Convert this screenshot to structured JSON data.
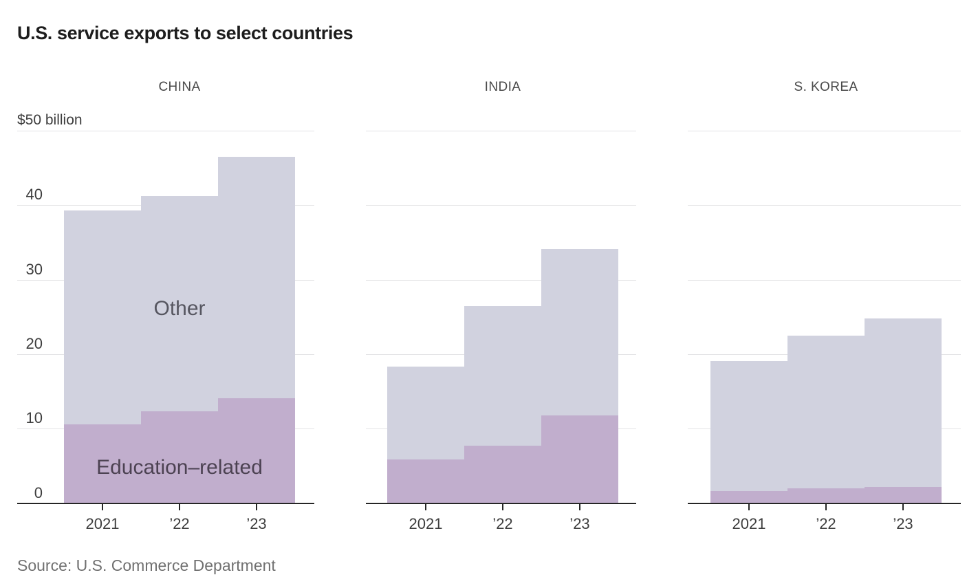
{
  "title": "U.S. service exports to select countries",
  "source": "Source: U.S. Commerce Department",
  "y_axis": {
    "unit_label": "$50 billion",
    "tick_labels": [
      "0",
      "10",
      "20",
      "30",
      "40"
    ]
  },
  "annotations": {
    "other": "Other",
    "education": "Education–related"
  },
  "colors": {
    "education": "#c1aecd",
    "other": "#d1d2df",
    "gridline": "#e3e3e5",
    "axis": "#262626",
    "title_text": "#1d1d1d",
    "panel_label_text": "#4a4a4a",
    "tick_label_text": "#3d3d3d",
    "annotation_other_text": "#565660",
    "annotation_education_text": "#4c4252",
    "source_text": "#707070"
  },
  "chart_data": {
    "type": "bar",
    "stacked": true,
    "unit": "billion USD",
    "title": "U.S. service exports to select countries",
    "categories": [
      "2021",
      "2022",
      "2023"
    ],
    "x_tick_labels": [
      "2021",
      "’22",
      "’23"
    ],
    "ylim": [
      0,
      50
    ],
    "gridlines": [
      10,
      20,
      30,
      40,
      50
    ],
    "grid": true,
    "legend_position": "in-chart annotations (first panel)",
    "stack_order_bottom_to_top": [
      "Education-related",
      "Other"
    ],
    "panels": [
      {
        "label": "CHINA",
        "series": [
          {
            "name": "Education-related",
            "values": [
              10.6,
              12.3,
              14.1
            ]
          },
          {
            "name": "Other",
            "values": [
              28.7,
              28.9,
              32.4
            ]
          }
        ],
        "totals": [
          39.3,
          41.2,
          46.5
        ]
      },
      {
        "label": "INDIA",
        "series": [
          {
            "name": "Education-related",
            "values": [
              5.9,
              7.7,
              11.8
            ]
          },
          {
            "name": "Other",
            "values": [
              12.4,
              18.8,
              22.3
            ]
          }
        ],
        "totals": [
          18.3,
          26.5,
          34.1
        ]
      },
      {
        "label": "S. KOREA",
        "series": [
          {
            "name": "Education-related",
            "values": [
              1.6,
              2.0,
              2.2
            ]
          },
          {
            "name": "Other",
            "values": [
              17.5,
              20.5,
              22.6
            ]
          }
        ],
        "totals": [
          19.1,
          22.5,
          24.8
        ]
      }
    ]
  }
}
